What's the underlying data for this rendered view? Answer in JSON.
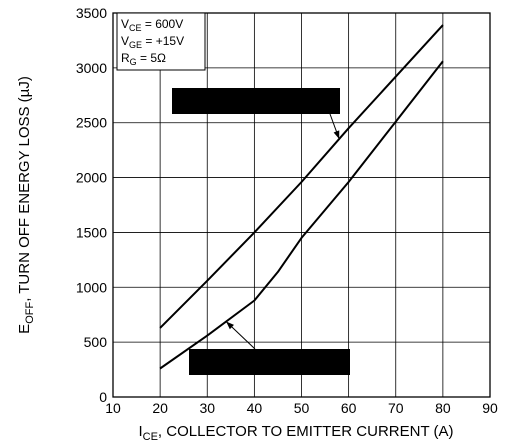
{
  "chart_data": {
    "type": "line",
    "xlabel_main": "I",
    "xlabel_sub": "CE",
    "xlabel_rest": ", COLLECTOR TO EMITTER CURRENT (A)",
    "ylabel_main": "E",
    "ylabel_sub": "OFF",
    "ylabel_rest": ", TURN OFF ENERGY LOSS (µJ)",
    "xlim": [
      10,
      90
    ],
    "ylim": [
      0,
      3500
    ],
    "x_ticks": [
      "10",
      "20",
      "30",
      "40",
      "50",
      "60",
      "70",
      "80",
      "90"
    ],
    "y_ticks": [
      "0",
      "500",
      "1000",
      "1500",
      "2000",
      "2500",
      "3000",
      "3500"
    ],
    "grid": true,
    "conditions": [
      {
        "main": "V",
        "sub": "CE",
        "rest": " =  600V"
      },
      {
        "main": "V",
        "sub": "GE",
        "rest": " =  +15V"
      },
      {
        "main": "R",
        "sub": "G",
        "rest": " = 5Ω"
      }
    ],
    "series": [
      {
        "x": [
          20,
          30,
          40,
          50,
          60,
          70,
          80
        ],
        "y": [
          630,
          1060,
          1500,
          1960,
          2450,
          2920,
          3390
        ]
      },
      {
        "x": [
          20,
          30,
          40,
          45,
          50,
          60,
          70,
          80
        ],
        "y": [
          260,
          560,
          880,
          1140,
          1450,
          1960,
          2510,
          3060
        ]
      }
    ],
    "annotations": [
      {
        "series": 0,
        "at_x": 58
      },
      {
        "series": 1,
        "at_x": 34
      }
    ],
    "line_color": "#000000"
  }
}
